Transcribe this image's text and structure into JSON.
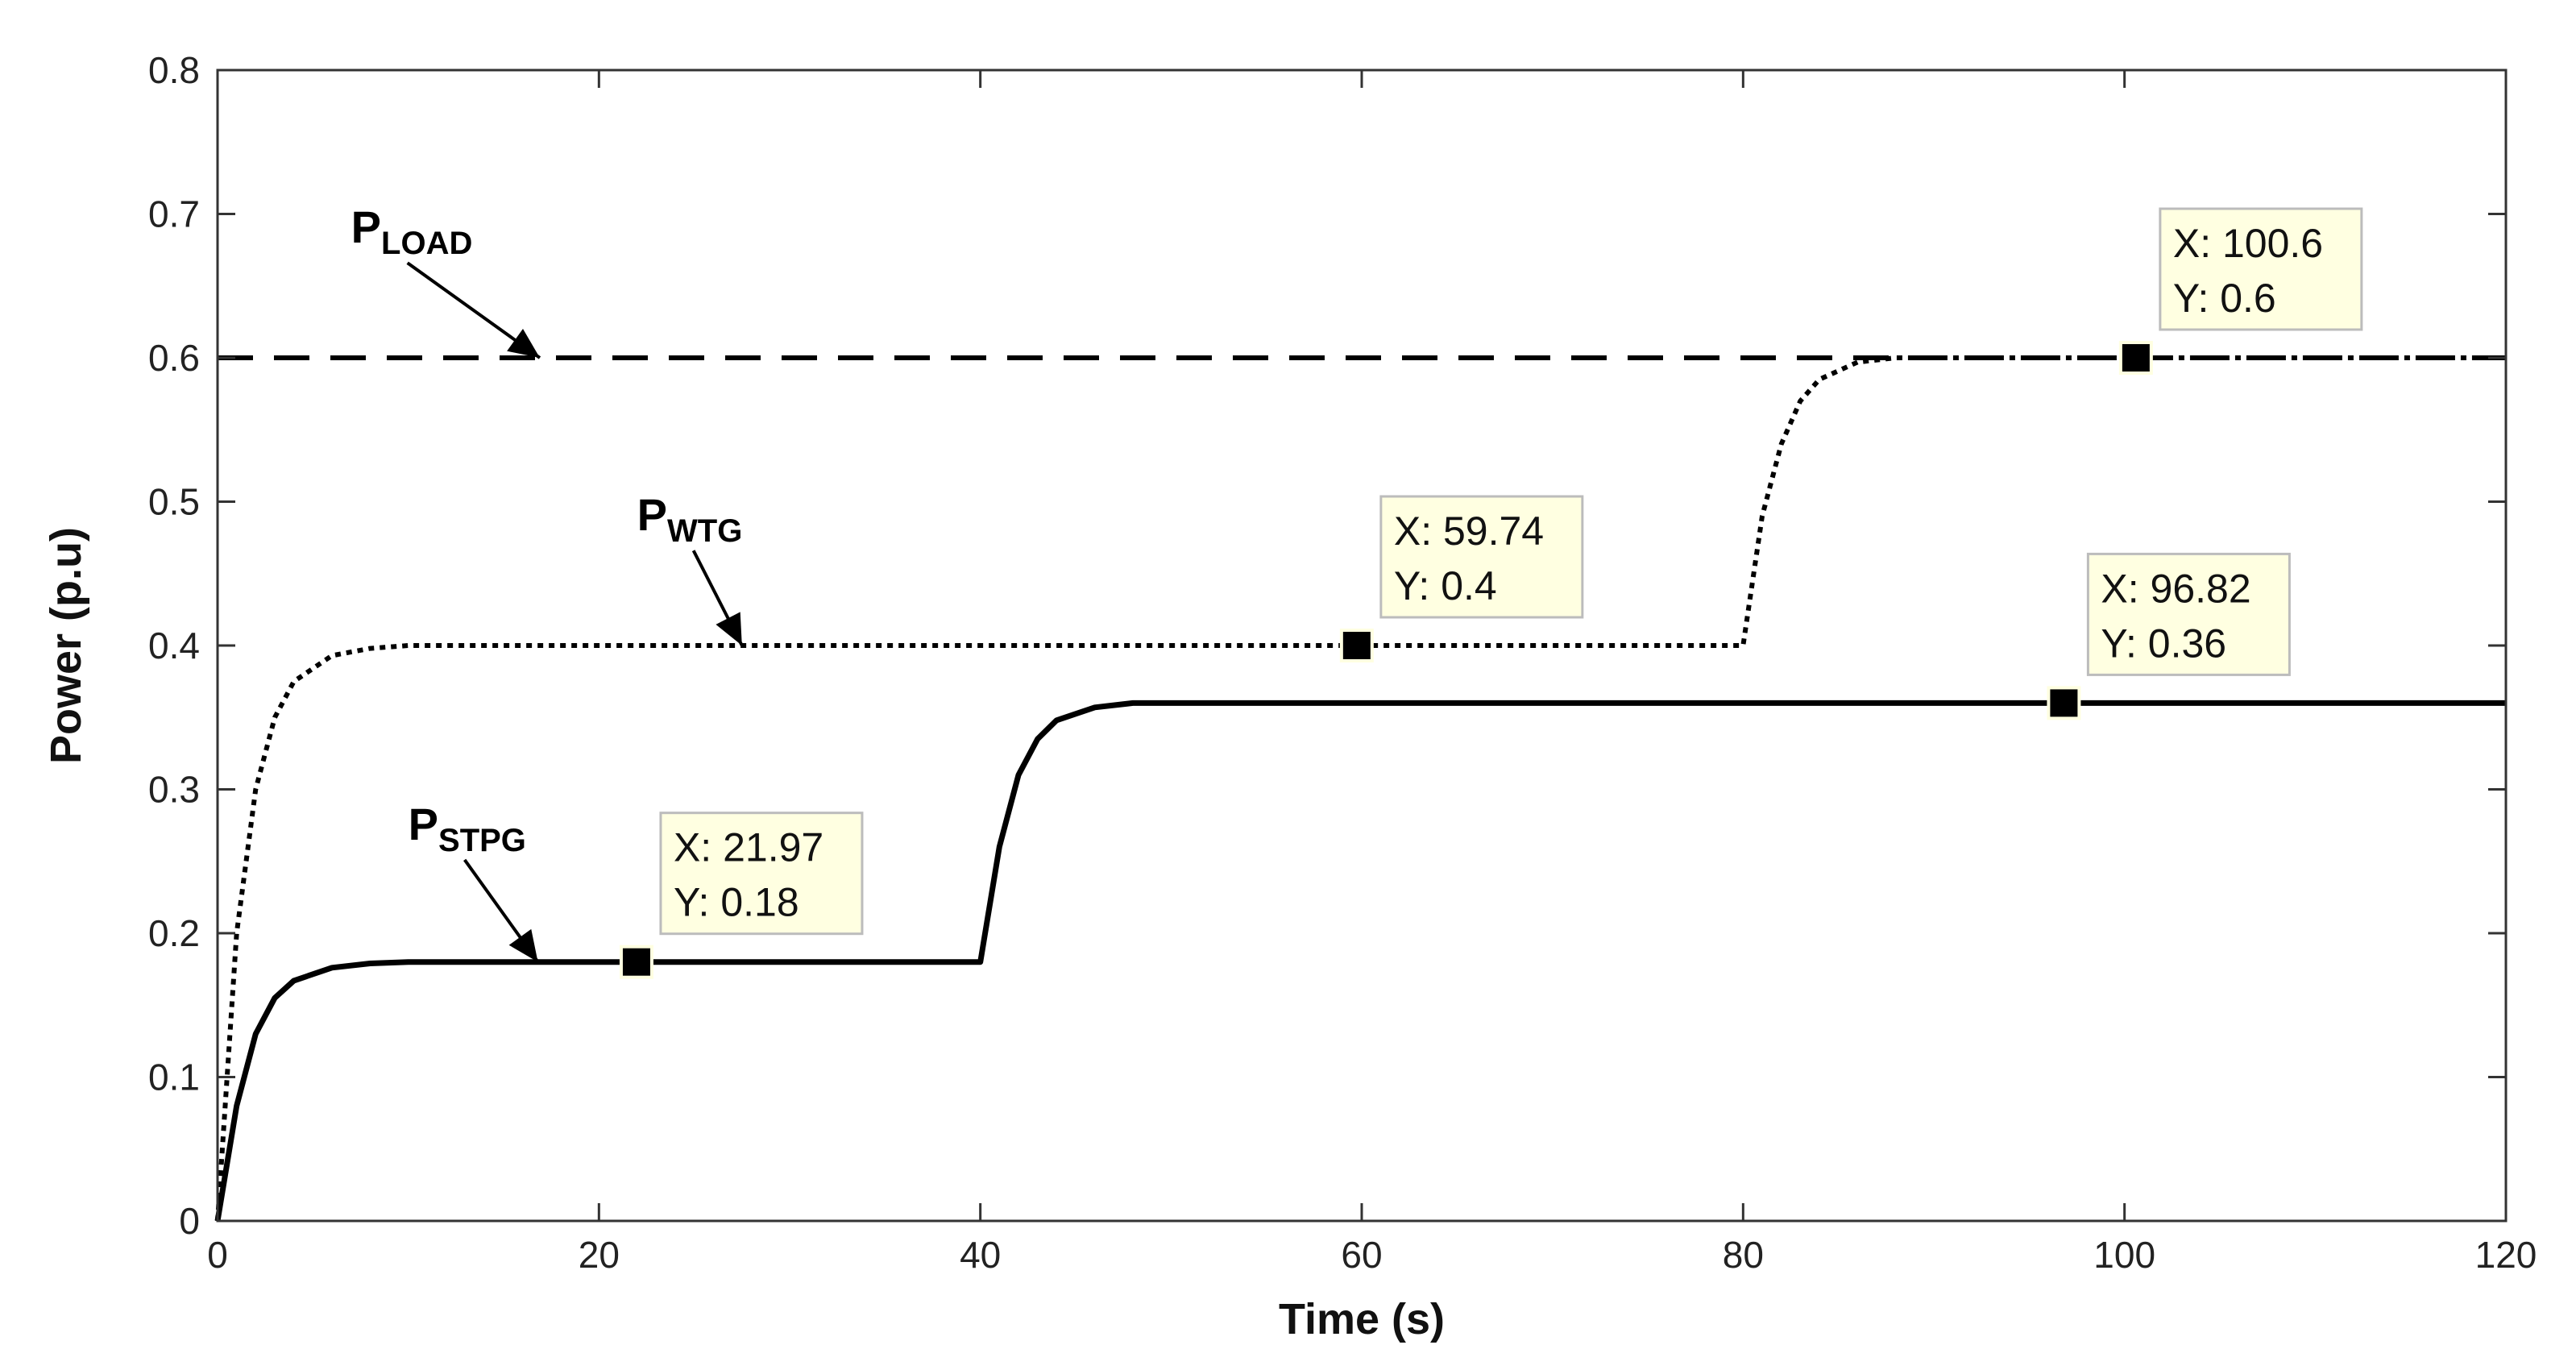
{
  "chart_data": {
    "type": "line",
    "title": "",
    "xlabel": "Time (s)",
    "ylabel": "Power (p.u)",
    "xlim": [
      0,
      120
    ],
    "ylim": [
      0,
      0.8
    ],
    "xticks": [
      0,
      20,
      40,
      60,
      80,
      100,
      120
    ],
    "xtick_labels": [
      "0",
      "20",
      "40",
      "60",
      "80",
      "100",
      "120"
    ],
    "yticks": [
      0,
      0.1,
      0.2,
      0.3,
      0.4,
      0.5,
      0.6,
      0.7,
      0.8
    ],
    "ytick_labels": [
      "0",
      "0.1",
      "0.2",
      "0.3",
      "0.4",
      "0.5",
      "0.6",
      "0.7",
      "0.8"
    ],
    "grid": false,
    "series": [
      {
        "name": "P_LOAD",
        "label_main": "P",
        "label_sub": "LOAD",
        "style": "dashed",
        "color": "#000000",
        "x": [
          0,
          120
        ],
        "y": [
          0.6,
          0.6
        ]
      },
      {
        "name": "P_WTG",
        "label_main": "P",
        "label_sub": "WTG",
        "style": "dotted",
        "color": "#000000",
        "x": [
          0,
          1,
          2,
          3,
          4,
          6,
          8,
          10,
          15,
          20,
          30,
          40,
          50,
          60,
          70,
          80,
          81,
          82,
          83,
          84,
          86,
          88,
          90,
          95,
          100,
          110,
          120
        ],
        "y": [
          0,
          0.2,
          0.3,
          0.35,
          0.375,
          0.393,
          0.398,
          0.4,
          0.4,
          0.4,
          0.4,
          0.4,
          0.4,
          0.4,
          0.4,
          0.4,
          0.49,
          0.54,
          0.57,
          0.585,
          0.597,
          0.6,
          0.6,
          0.6,
          0.6,
          0.6,
          0.6
        ]
      },
      {
        "name": "P_STPG",
        "label_main": "P",
        "label_sub": "STPG",
        "style": "solid",
        "color": "#000000",
        "x": [
          0,
          1,
          2,
          3,
          4,
          6,
          8,
          10,
          15,
          20,
          30,
          40,
          41,
          42,
          43,
          44,
          46,
          48,
          50,
          60,
          70,
          80,
          90,
          100,
          110,
          120
        ],
        "y": [
          0,
          0.08,
          0.13,
          0.155,
          0.167,
          0.176,
          0.179,
          0.18,
          0.18,
          0.18,
          0.18,
          0.18,
          0.26,
          0.31,
          0.335,
          0.348,
          0.357,
          0.36,
          0.36,
          0.36,
          0.36,
          0.36,
          0.36,
          0.36,
          0.36,
          0.36
        ]
      }
    ],
    "datatips": [
      {
        "x": 21.97,
        "y": 0.18,
        "line1": "X: 21.97",
        "line2": "Y: 0.18"
      },
      {
        "x": 59.74,
        "y": 0.4,
        "line1": "X: 59.74",
        "line2": "Y: 0.4"
      },
      {
        "x": 96.82,
        "y": 0.36,
        "line1": "X: 96.82",
        "line2": "Y: 0.36"
      },
      {
        "x": 100.6,
        "y": 0.6,
        "line1": "X: 100.6",
        "line2": "Y: 0.6"
      }
    ],
    "annotations": [
      {
        "series": "P_LOAD",
        "main": "P",
        "sub": "LOAD",
        "label_at": [
          7,
          0.68
        ],
        "arrow_to": [
          16.9,
          0.6
        ]
      },
      {
        "series": "P_WTG",
        "main": "P",
        "sub": "WTG",
        "label_at": [
          22,
          0.48
        ],
        "arrow_to": [
          27.5,
          0.4
        ]
      },
      {
        "series": "P_STPG",
        "main": "P",
        "sub": "STPG",
        "label_at": [
          10,
          0.265
        ],
        "arrow_to": [
          16.8,
          0.18
        ]
      }
    ],
    "colors": {
      "axis": "#333333",
      "tip_fill": "#ffffe1",
      "tip_border": "#bcbcbc",
      "marker": "#000000"
    }
  }
}
